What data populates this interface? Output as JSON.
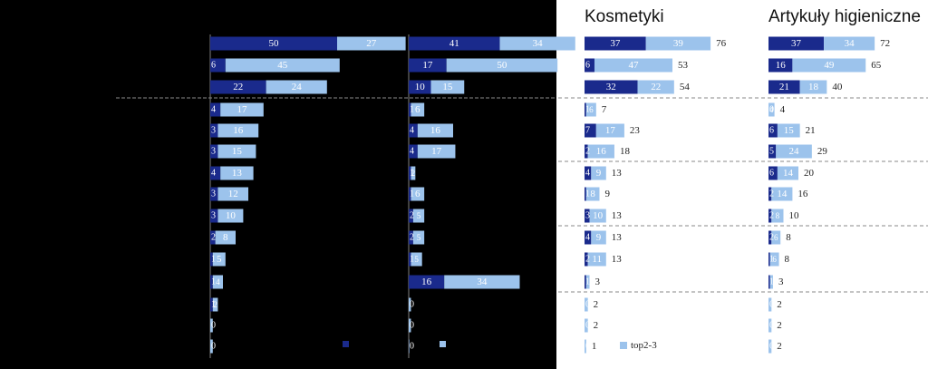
{
  "colors": {
    "top1": "#1a2a8c",
    "top23": "#9cc3ec",
    "background": "#000000",
    "panel": "#ffffff",
    "divider": "#8a8a8a"
  },
  "legend": {
    "top1": "",
    "top23": "top2-3"
  },
  "chart_data": [
    {
      "type": "bar",
      "stacked": true,
      "orientation": "horizontal",
      "title": "",
      "series_names": [
        "top1",
        "top2-3"
      ],
      "rows": [
        {
          "top1": 50,
          "top23": 27,
          "total": null
        },
        {
          "top1": 6,
          "top23": 45,
          "total": null
        },
        {
          "top1": 22,
          "top23": 24,
          "total": null
        },
        {
          "top1": 4,
          "top23": 17,
          "total": null
        },
        {
          "top1": 3,
          "top23": 16,
          "total": null
        },
        {
          "top1": 3,
          "top23": 15,
          "total": null
        },
        {
          "top1": 4,
          "top23": 13,
          "total": null
        },
        {
          "top1": 3,
          "top23": 12,
          "total": null
        },
        {
          "top1": 3,
          "top23": 10,
          "total": null
        },
        {
          "top1": 2,
          "top23": 8,
          "total": null
        },
        {
          "top1": 1,
          "top23": 5,
          "total": null
        },
        {
          "top1": 1,
          "top23": 4,
          "total": null
        },
        {
          "top1": 1,
          "top23": 2,
          "total": null
        },
        {
          "top1": 0,
          "top23": 1,
          "total": null
        },
        {
          "top1": 0,
          "top23": 1,
          "total": null
        }
      ]
    },
    {
      "type": "bar",
      "stacked": true,
      "orientation": "horizontal",
      "title": "",
      "series_names": [
        "top1",
        "top2-3"
      ],
      "rows": [
        {
          "top1": 41,
          "top23": 34,
          "total": null
        },
        {
          "top1": 17,
          "top23": 50,
          "total": null
        },
        {
          "top1": 10,
          "top23": 15,
          "total": null
        },
        {
          "top1": 1,
          "top23": 6,
          "total": null
        },
        {
          "top1": 4,
          "top23": 16,
          "total": null
        },
        {
          "top1": 4,
          "top23": 17,
          "total": null
        },
        {
          "top1": 1,
          "top23": 2,
          "total": null
        },
        {
          "top1": 1,
          "top23": 6,
          "total": null
        },
        {
          "top1": 2,
          "top23": 5,
          "total": null
        },
        {
          "top1": 2,
          "top23": 5,
          "total": null
        },
        {
          "top1": 1,
          "top23": 5,
          "total": null
        },
        {
          "top1": 16,
          "top23": 34,
          "total": null
        },
        {
          "top1": 0,
          "top23": 1,
          "total": null
        },
        {
          "top1": 0,
          "top23": 1,
          "total": null
        },
        {
          "top1": 0,
          "top23": 0,
          "total": null
        }
      ]
    },
    {
      "type": "bar",
      "stacked": true,
      "orientation": "horizontal",
      "title": "Kosmetyki",
      "series_names": [
        "top1",
        "top2-3"
      ],
      "rows": [
        {
          "top1": 37,
          "top23": 39,
          "total": 76
        },
        {
          "top1": 6,
          "top23": 47,
          "total": 53
        },
        {
          "top1": 32,
          "top23": 22,
          "total": 54
        },
        {
          "top1": 1,
          "top23": 6,
          "total": 7
        },
        {
          "top1": 7,
          "top23": 17,
          "total": 23
        },
        {
          "top1": 2,
          "top23": 16,
          "total": 18
        },
        {
          "top1": 4,
          "top23": 9,
          "total": 13
        },
        {
          "top1": 1,
          "top23": 8,
          "total": 9
        },
        {
          "top1": 3,
          "top23": 10,
          "total": 13
        },
        {
          "top1": 4,
          "top23": 9,
          "total": 13
        },
        {
          "top1": 2,
          "top23": 11,
          "total": 13
        },
        {
          "top1": 1,
          "top23": 2,
          "total": 3
        },
        {
          "top1": 0,
          "top23": 2,
          "total": 2
        },
        {
          "top1": 0,
          "top23": 2,
          "total": 2
        },
        {
          "top1": 0,
          "top23": 1,
          "total": 1
        }
      ]
    },
    {
      "type": "bar",
      "stacked": true,
      "orientation": "horizontal",
      "title": "Artykuły higieniczne",
      "series_names": [
        "top1",
        "top2-3"
      ],
      "rows": [
        {
          "top1": 37,
          "top23": 34,
          "total": 72
        },
        {
          "top1": 16,
          "top23": 49,
          "total": 65
        },
        {
          "top1": 21,
          "top23": 18,
          "total": 40
        },
        {
          "top1": 0,
          "top23": 4,
          "total": 4
        },
        {
          "top1": 6,
          "top23": 15,
          "total": 21
        },
        {
          "top1": 5,
          "top23": 24,
          "total": 29
        },
        {
          "top1": 6,
          "top23": 14,
          "total": 20
        },
        {
          "top1": 2,
          "top23": 14,
          "total": 16
        },
        {
          "top1": 2,
          "top23": 8,
          "total": 10
        },
        {
          "top1": 2,
          "top23": 6,
          "total": 8
        },
        {
          "top1": 1,
          "top23": 6,
          "total": 8
        },
        {
          "top1": 1,
          "top23": 2,
          "total": 3
        },
        {
          "top1": 0,
          "top23": 2,
          "total": 2
        },
        {
          "top1": 0,
          "top23": 2,
          "total": 2
        },
        {
          "top1": 0,
          "top23": 2,
          "total": 2
        }
      ]
    }
  ]
}
